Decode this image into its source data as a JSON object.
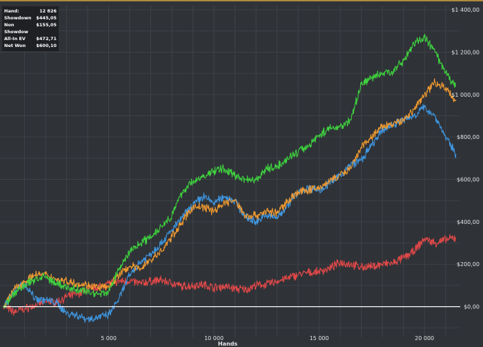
{
  "stats": [
    {
      "label": "Hand:",
      "value": "12 826"
    },
    {
      "label": "Showdown",
      "value": "$445,05"
    },
    {
      "label": "Non Showdow",
      "value": "$155,05"
    },
    {
      "label": "All-In EV",
      "value": "$472,71"
    },
    {
      "label": "Net Won",
      "value": "$600,10"
    }
  ],
  "chart_data": {
    "type": "line",
    "xlabel": "Hands",
    "xlim": [
      0,
      21700
    ],
    "ylim": [
      -135,
      1420
    ],
    "x_ticks": [
      5000,
      10000,
      15000,
      20000
    ],
    "x_tick_labels": [
      "5 000",
      "10 000",
      "15 000",
      "20 000"
    ],
    "y_ticks": [
      0,
      200,
      400,
      600,
      800,
      1000,
      1200,
      1400
    ],
    "y_tick_labels": [
      "$0,00",
      "$200,00",
      "$400,00",
      "$600,00",
      "$800,00",
      "$1 000,00",
      "$1 200,00",
      "$1 400,00"
    ],
    "grid": true,
    "series": [
      {
        "color": "#e04848",
        "x": [
          0,
          500,
          1000,
          1500,
          2000,
          2500,
          3000,
          3500,
          4000,
          4500,
          5000,
          5500,
          6000,
          6500,
          7000,
          7500,
          8000,
          8500,
          9000,
          9500,
          10000,
          10500,
          11000,
          11500,
          12000,
          12500,
          13000,
          13500,
          14000,
          14500,
          15000,
          15500,
          16000,
          16500,
          17000,
          17500,
          18000,
          18500,
          19000,
          19500,
          20000,
          20500,
          21000,
          21500
        ],
        "values": [
          0,
          -25,
          -10,
          5,
          25,
          20,
          45,
          60,
          80,
          95,
          110,
          120,
          120,
          110,
          120,
          125,
          110,
          95,
          100,
          105,
          90,
          95,
          85,
          80,
          100,
          105,
          120,
          135,
          150,
          160,
          165,
          180,
          210,
          200,
          185,
          190,
          200,
          205,
          230,
          260,
          320,
          300,
          315,
          325
        ]
      },
      {
        "color": "#3f96e0",
        "x": [
          0,
          500,
          1000,
          1500,
          2000,
          2500,
          3000,
          3500,
          4000,
          4500,
          5000,
          5500,
          6000,
          6500,
          7000,
          7500,
          8000,
          8500,
          9000,
          9500,
          10000,
          10500,
          11000,
          11500,
          12000,
          12500,
          13000,
          13500,
          14000,
          14500,
          15000,
          15500,
          16000,
          16500,
          17000,
          17500,
          18000,
          18500,
          19000,
          19500,
          20000,
          20500,
          21000,
          21500
        ],
        "values": [
          0,
          70,
          110,
          40,
          30,
          20,
          -30,
          -40,
          -60,
          -50,
          -40,
          40,
          150,
          210,
          250,
          300,
          360,
          420,
          480,
          520,
          490,
          520,
          500,
          420,
          400,
          430,
          420,
          480,
          540,
          560,
          550,
          580,
          620,
          670,
          690,
          760,
          830,
          860,
          880,
          900,
          940,
          900,
          800,
          720
        ]
      },
      {
        "color": "#f09a30",
        "x": [
          0,
          500,
          1000,
          1500,
          2000,
          2500,
          3000,
          3500,
          4000,
          4500,
          5000,
          5500,
          6000,
          6500,
          7000,
          7500,
          8000,
          8500,
          9000,
          9500,
          10000,
          10500,
          11000,
          11500,
          12000,
          12500,
          13000,
          13500,
          14000,
          14500,
          15000,
          15500,
          16000,
          16500,
          17000,
          17500,
          18000,
          18500,
          19000,
          19500,
          20000,
          20500,
          21000,
          21500
        ],
        "values": [
          0,
          80,
          120,
          150,
          150,
          130,
          120,
          110,
          100,
          90,
          90,
          150,
          190,
          180,
          220,
          260,
          330,
          400,
          470,
          470,
          450,
          490,
          500,
          430,
          430,
          450,
          440,
          500,
          540,
          550,
          560,
          590,
          620,
          650,
          750,
          800,
          850,
          860,
          880,
          930,
          1000,
          1060,
          1030,
          970
        ]
      },
      {
        "color": "#3fd23f",
        "x": [
          0,
          500,
          1000,
          1500,
          2000,
          2500,
          3000,
          3500,
          4000,
          4500,
          5000,
          5500,
          6000,
          6500,
          7000,
          7500,
          8000,
          8500,
          9000,
          9500,
          10000,
          10500,
          11000,
          11500,
          12000,
          12500,
          13000,
          13500,
          14000,
          14500,
          15000,
          15500,
          16000,
          16500,
          17000,
          17500,
          18000,
          18500,
          19000,
          19500,
          20000,
          20500,
          21000,
          21500
        ],
        "values": [
          0,
          60,
          100,
          130,
          140,
          110,
          90,
          80,
          70,
          60,
          70,
          180,
          260,
          300,
          330,
          380,
          430,
          540,
          590,
          610,
          640,
          650,
          620,
          600,
          600,
          650,
          660,
          700,
          730,
          760,
          810,
          840,
          850,
          880,
          1050,
          1080,
          1100,
          1110,
          1160,
          1240,
          1270,
          1200,
          1100,
          1040
        ]
      },
      {
        "color": "#ffffff",
        "x": [
          0,
          21700
        ],
        "values": [
          0,
          0
        ]
      }
    ]
  }
}
